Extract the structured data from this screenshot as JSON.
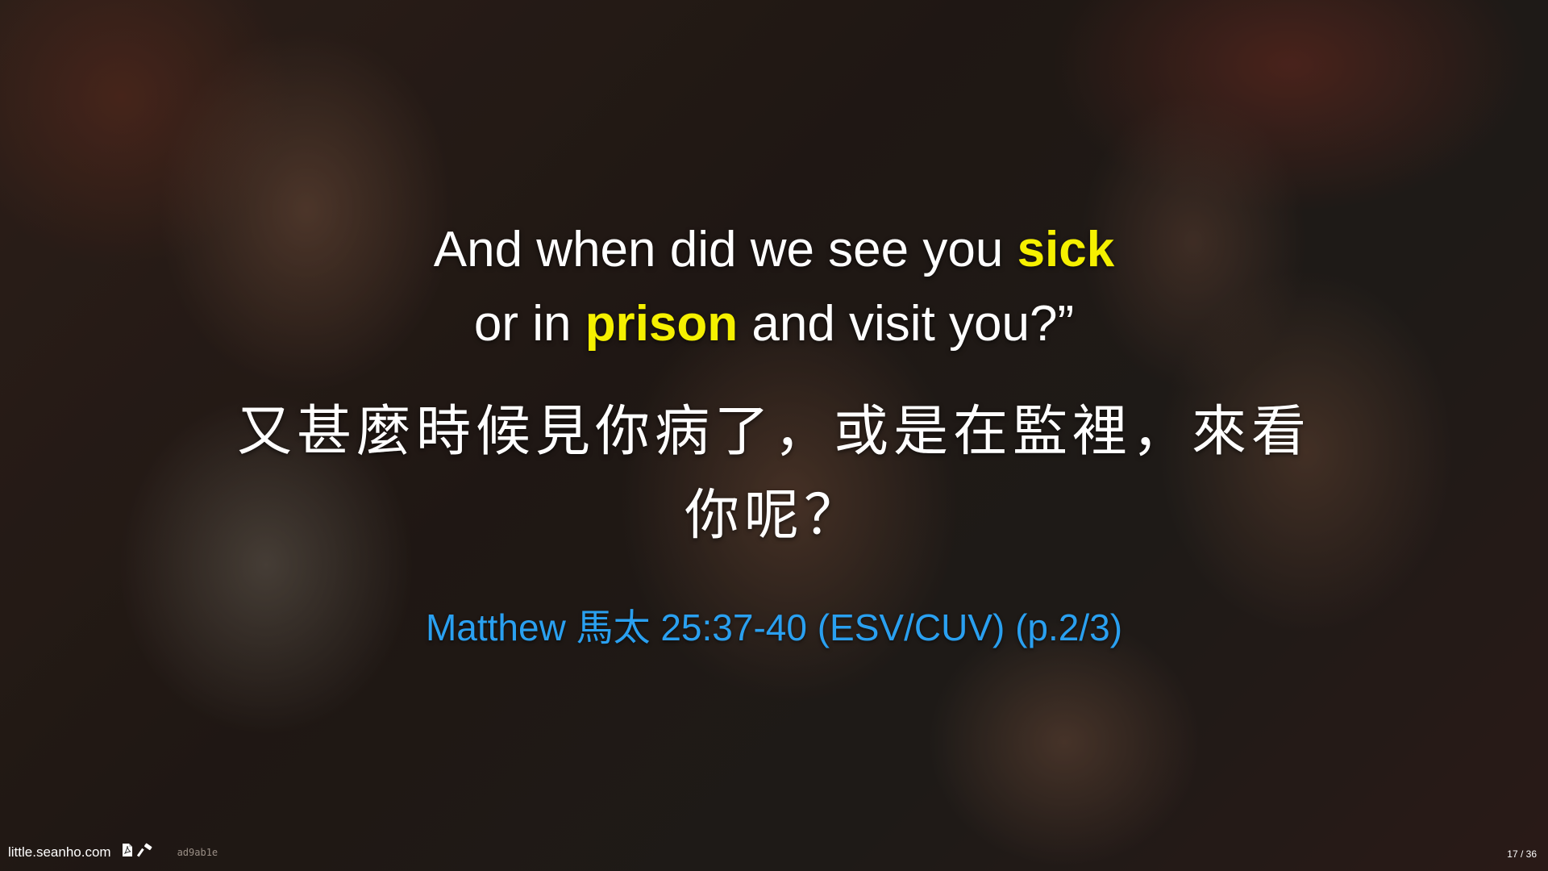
{
  "slide": {
    "english_line1_before": "And when did we see you ",
    "english_line1_highlight": "sick",
    "english_line2_before": "or in ",
    "english_line2_highlight": "prison",
    "english_line2_after": " and visit you?”",
    "chinese_line1": "又甚麼時候見你病了，或是在監裡，來看",
    "chinese_line2": "你呢？",
    "reference": "Matthew 馬太 25:37-40 (ESV/CUV) (p.2/3)"
  },
  "footer": {
    "site": "little.seanho.com",
    "hash": "ad9ab1e",
    "page_indicator": "17 / 36"
  },
  "colors": {
    "highlight": "#f5f000",
    "reference": "#2aa0f0",
    "text": "#ffffff"
  },
  "icons": {
    "pdf": "pdf-icon",
    "edit": "hammer-icon"
  }
}
